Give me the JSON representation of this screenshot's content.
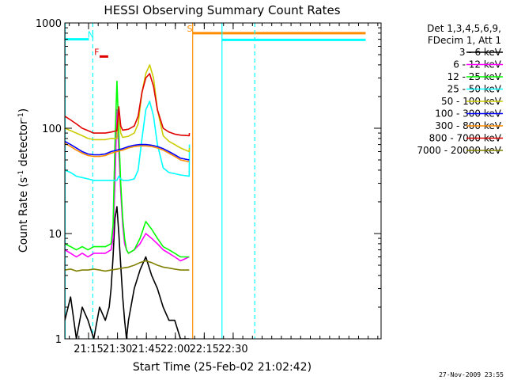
{
  "chart_data": {
    "type": "line",
    "title": "HESSI Observing Summary Count Rates",
    "xlabel": "Start Time (25-Feb-02 21:02:42)",
    "ylabel": "Count Rate (s-1 detector-1)",
    "ylabel_parts": {
      "main": "Count Rate (s",
      "sup1": "-1",
      "mid": " detector",
      "sup2": "-1",
      "end": ")"
    },
    "x_range_min": [
      0,
      164
    ],
    "y_scale": "log",
    "ylim": [
      1,
      1000
    ],
    "x_ticks": [
      {
        "value": 12.3,
        "label": "21:15"
      },
      {
        "value": 27.3,
        "label": "21:30"
      },
      {
        "value": 42.3,
        "label": "21:45"
      },
      {
        "value": 57.3,
        "label": "22:00"
      },
      {
        "value": 72.3,
        "label": "22:15"
      },
      {
        "value": 87.3,
        "label": "22:30"
      }
    ],
    "y_ticks": [
      {
        "value": 1,
        "label": "1"
      },
      {
        "value": 10,
        "label": "10"
      },
      {
        "value": 100,
        "label": "100"
      },
      {
        "value": 1000,
        "label": "1000"
      }
    ],
    "legend": {
      "header": [
        "Det 1,3,4,5,6,9,",
        "FDecim 1, Att 1"
      ],
      "position": "right"
    },
    "series": [
      {
        "name": "3 - 6 keV",
        "color": "#000000",
        "x": [
          0,
          3,
          6,
          9,
          12,
          15,
          18,
          21,
          23,
          24,
          25,
          26,
          27,
          28,
          29,
          30,
          31,
          32,
          33,
          36,
          39,
          42,
          45,
          48,
          51,
          54,
          57,
          60,
          64.5
        ],
        "y": [
          1.5,
          2.5,
          1,
          2,
          1.5,
          1,
          2,
          1.5,
          2,
          3,
          6,
          14,
          18,
          10,
          5,
          2.5,
          1.5,
          1,
          1.5,
          3,
          4.5,
          6,
          4,
          3,
          2,
          1.5,
          1.5,
          1,
          1
        ]
      },
      {
        "name": "6 - 12 keV",
        "color": "#ff00ff",
        "x": [
          0,
          3,
          6,
          9,
          12,
          15,
          18,
          21,
          24,
          25,
          26,
          27,
          28,
          29,
          30,
          31,
          32,
          33,
          36,
          39,
          42,
          45,
          48,
          51,
          54,
          57,
          60,
          64.5
        ],
        "y": [
          7,
          6.5,
          6,
          6.5,
          6,
          6.5,
          6.5,
          6.5,
          7,
          9,
          30,
          150,
          60,
          25,
          12,
          8,
          7,
          6.5,
          7,
          8,
          10,
          9,
          8,
          7,
          6.5,
          6,
          5.5,
          6
        ]
      },
      {
        "name": "12 - 25 keV",
        "color": "#00ff00",
        "x": [
          0,
          3,
          6,
          9,
          12,
          15,
          18,
          21,
          24,
          25,
          26,
          27,
          28,
          29,
          30,
          31,
          32,
          33,
          36,
          39,
          42,
          45,
          48,
          51,
          54,
          57,
          60,
          64.5
        ],
        "y": [
          8,
          7.5,
          7,
          7.5,
          7,
          7.5,
          7.5,
          7.5,
          8,
          12,
          70,
          280,
          90,
          30,
          14,
          9,
          7,
          6.5,
          7,
          9,
          13,
          11,
          9,
          7.5,
          7,
          6.5,
          6,
          6
        ]
      },
      {
        "name": "25 - 50 keV",
        "color": "#00ffff",
        "x": [
          0,
          3,
          6,
          9,
          12,
          15,
          18,
          21,
          24,
          27,
          28,
          29,
          30,
          33,
          36,
          38,
          40,
          42,
          44,
          46,
          48,
          51,
          54,
          57,
          60,
          64.5,
          64.6
        ],
        "y": [
          40,
          38,
          35,
          34,
          33,
          32,
          32,
          32,
          32,
          32,
          35,
          33,
          32,
          32,
          33,
          40,
          80,
          150,
          180,
          130,
          70,
          42,
          38,
          37,
          36,
          35,
          70
        ]
      },
      {
        "name": "50 - 100 keV",
        "color": "#cccc00",
        "x": [
          0,
          3,
          6,
          9,
          12,
          15,
          18,
          21,
          24,
          27,
          28,
          29,
          30,
          33,
          36,
          38,
          40,
          42,
          44,
          46,
          48,
          51,
          54,
          57,
          60,
          64.5,
          64.6
        ],
        "y": [
          100,
          95,
          90,
          85,
          80,
          78,
          78,
          78,
          80,
          80,
          150,
          90,
          82,
          84,
          90,
          110,
          220,
          330,
          400,
          300,
          150,
          85,
          75,
          70,
          65,
          60,
          65
        ]
      },
      {
        "name": "100 - 300 keV",
        "color": "#0000ff",
        "x": [
          0,
          3,
          6,
          9,
          12,
          15,
          18,
          21,
          24,
          27,
          30,
          33,
          36,
          39,
          42,
          45,
          48,
          51,
          54,
          57,
          60,
          64.5
        ],
        "y": [
          75,
          70,
          65,
          60,
          57,
          56,
          56,
          57,
          60,
          62,
          64,
          67,
          69,
          70,
          70,
          69,
          67,
          64,
          60,
          56,
          52,
          50
        ]
      },
      {
        "name": "300 - 800 keV",
        "color": "#ff8c00",
        "x": [
          0,
          3,
          6,
          9,
          12,
          15,
          18,
          21,
          24,
          27,
          30,
          33,
          36,
          39,
          42,
          45,
          48,
          51,
          54,
          57,
          60,
          64.5
        ],
        "y": [
          72,
          67,
          62,
          58,
          55,
          54,
          54,
          55,
          58,
          60,
          62,
          65,
          67,
          68,
          68,
          67,
          65,
          62,
          58,
          54,
          50,
          48
        ]
      },
      {
        "name": "800 - 7000 keV",
        "color": "#e00000",
        "x": [
          0,
          3,
          6,
          9,
          12,
          15,
          18,
          21,
          24,
          27,
          28,
          29,
          30,
          33,
          36,
          38,
          40,
          42,
          44,
          46,
          48,
          51,
          54,
          57,
          60,
          64.5,
          64.6
        ],
        "y": [
          130,
          120,
          110,
          100,
          95,
          90,
          90,
          90,
          92,
          95,
          160,
          105,
          96,
          98,
          105,
          130,
          220,
          300,
          330,
          250,
          150,
          100,
          92,
          88,
          86,
          85,
          90
        ]
      },
      {
        "name": "7000 - 20000 keV",
        "color": "#808000",
        "x": [
          0,
          3,
          6,
          9,
          12,
          15,
          18,
          21,
          24,
          27,
          30,
          33,
          36,
          39,
          42,
          45,
          48,
          51,
          54,
          57,
          60,
          64.5
        ],
        "y": [
          4.5,
          4.6,
          4.4,
          4.5,
          4.5,
          4.6,
          4.5,
          4.4,
          4.5,
          4.6,
          4.7,
          4.8,
          5,
          5.3,
          5.5,
          5.3,
          5,
          4.8,
          4.7,
          4.6,
          4.5,
          4.5
        ]
      }
    ],
    "flag_bars": [
      {
        "label": "N",
        "color": "#00ffff",
        "x_start": 0,
        "x_end": 12.5,
        "y": 700,
        "label_x": 13.5
      },
      {
        "label": "F",
        "color": "#e00000",
        "x_start": 18,
        "x_end": 22.5,
        "y": 480,
        "label_x": 16.5
      },
      {
        "label": "S",
        "color": "#ff8c00",
        "x_start": 66.3,
        "x_end": 156,
        "y": 800,
        "label_x": 64.8
      },
      {
        "label": "",
        "color": "#00ffff",
        "x_start": 81.5,
        "x_end": 156,
        "y": 690,
        "label_x": 0
      }
    ],
    "vlines": [
      {
        "x": 0.2,
        "color": "#00ffff",
        "dash": false
      },
      {
        "x": 14.5,
        "color": "#00ffff",
        "dash": true
      },
      {
        "x": 66.3,
        "color": "#ff8c00",
        "dash": false
      },
      {
        "x": 81.5,
        "color": "#00ffff",
        "dash": false
      },
      {
        "x": 98.5,
        "color": "#00ffff",
        "dash": true
      }
    ],
    "grid": false,
    "timestamp": "27-Nov-2009 23:55"
  }
}
